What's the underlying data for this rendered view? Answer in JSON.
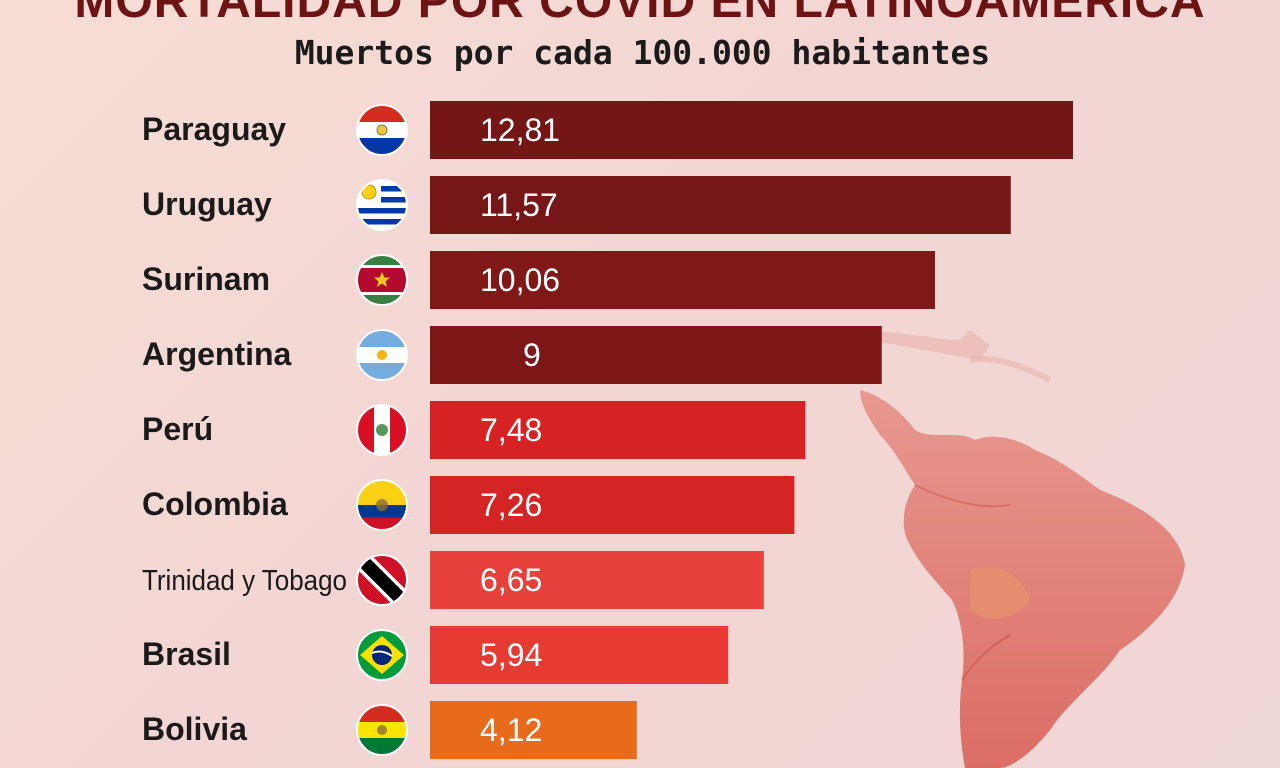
{
  "title": "MORTALIDAD POR COVID EN LATINOAMÉRICA",
  "subtitle": "Muertos por cada 100.000 habitantes",
  "chart_data": {
    "type": "bar",
    "orientation": "horizontal",
    "title": "MORTALIDAD POR COVID EN LATINOAMÉRICA",
    "subtitle": "Muertos por cada 100.000 habitantes",
    "xlabel": "",
    "ylabel": "",
    "categories": [
      "Paraguay",
      "Uruguay",
      "Surinam",
      "Argentina",
      "Perú",
      "Colombia",
      "Trinidad y Tobago",
      "Brasil",
      "Bolivia"
    ],
    "values": [
      12.81,
      11.57,
      10.06,
      9,
      7.48,
      7.26,
      6.65,
      5.94,
      4.12
    ],
    "value_labels": [
      "12,81",
      "11,57",
      "10,06",
      "9",
      "7,48",
      "7,26",
      "6,65",
      "5,94",
      "4,12"
    ],
    "bar_colors": [
      "#741616",
      "#761616",
      "#801818",
      "#7e1818",
      "#d62222",
      "#d42424",
      "#e8403a",
      "#e63a33",
      "#e86a1b"
    ],
    "flags": [
      "paraguay-flag-icon",
      "uruguay-flag-icon",
      "suriname-flag-icon",
      "argentina-flag-icon",
      "peru-flag-icon",
      "colombia-flag-icon",
      "trinidad-tobago-flag-icon",
      "brazil-flag-icon",
      "bolivia-flag-icon"
    ],
    "xlim": [
      0,
      12.81
    ],
    "grid": false,
    "legend": "none"
  }
}
